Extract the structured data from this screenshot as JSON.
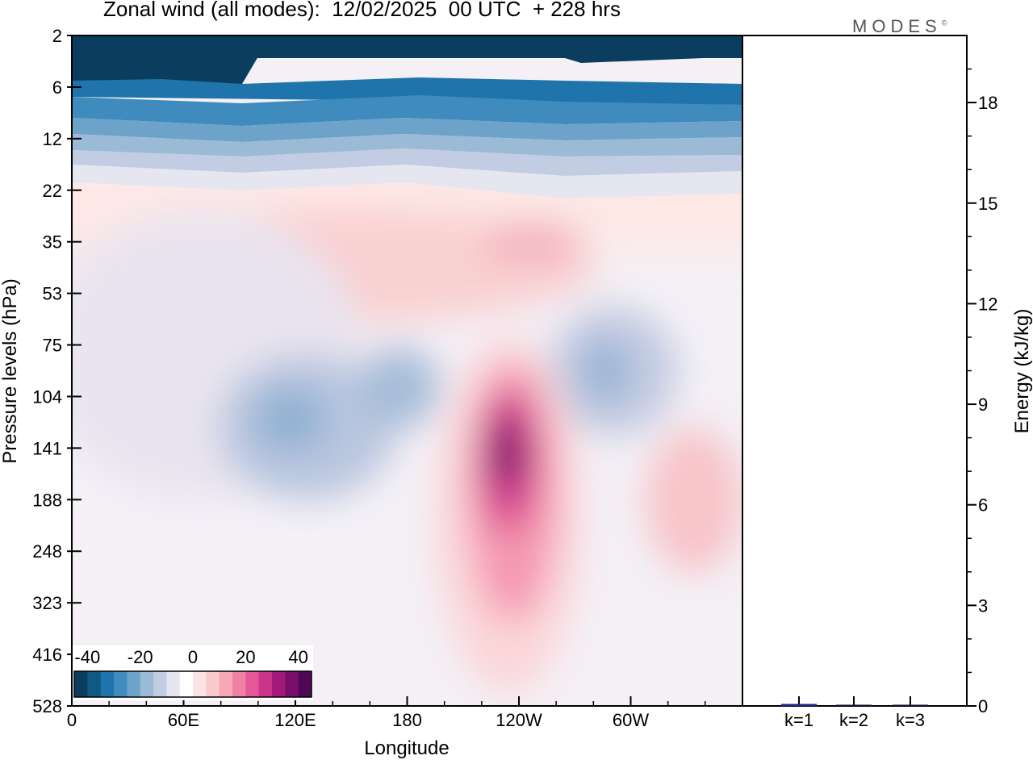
{
  "title": "Zonal wind (all modes):  12/02/2025  00 UTC  + 228 hrs",
  "brand": "MODES",
  "brand_mark": "©",
  "chart_data": [
    {
      "type": "heatmap",
      "title": "Zonal wind (all modes):  12/02/2025  00 UTC  + 228 hrs",
      "xlabel": "Longitude",
      "ylabel": "Pressure levels (hPa)",
      "x_ticks": [
        "0",
        "60E",
        "120E",
        "180",
        "120W",
        "60W"
      ],
      "y_ticks": [
        "2",
        "6",
        "12",
        "22",
        "35",
        "53",
        "75",
        "104",
        "141",
        "188",
        "248",
        "323",
        "416",
        "528"
      ],
      "colorbar": {
        "tick_labels": [
          "-40",
          "-20",
          "0",
          "20",
          "40"
        ],
        "colors": [
          "#0b3d5e",
          "#0f5a85",
          "#1f74ab",
          "#3f8bbd",
          "#6da3c9",
          "#9bbad6",
          "#c2cce2",
          "#e6e6f0",
          "#ffffff",
          "#fde4e4",
          "#f9caca",
          "#f6a8b6",
          "#f181a4",
          "#e45898",
          "#cc3489",
          "#a3197a",
          "#7a0f6b",
          "#4e0855"
        ],
        "range": [
          -45,
          45
        ]
      },
      "features": [
        {
          "name": "stratospheric easterly jet",
          "kind": "negative",
          "lon_span": [
            0,
            360
          ],
          "levels": "2-22 hPa",
          "min_value": -45
        },
        {
          "name": "Pacific westerly jet core",
          "kind": "positive",
          "lon_center": 240,
          "level_center": 141,
          "max_value": 45
        },
        {
          "name": "upper westerlies",
          "kind": "positive",
          "lon_span": [
            10,
            260
          ],
          "levels": "22-75 hPa",
          "max_value": 15
        },
        {
          "name": "east Atlantic westerlies",
          "kind": "positive",
          "lon_center": 340,
          "level_center": 188,
          "max_value": 15
        },
        {
          "name": "tropical easterlies",
          "kind": "negative",
          "lon_center": 140,
          "level_center": 104,
          "min_value": -20
        },
        {
          "name": "American easterlies",
          "kind": "negative",
          "lon_center": 290,
          "level_center": 104,
          "min_value": -20
        }
      ]
    },
    {
      "type": "bar",
      "ylabel": "Energy (kJ/kg)",
      "ylim": [
        0,
        20
      ],
      "y_ticks": [
        "0",
        "3",
        "6",
        "9",
        "12",
        "15",
        "18"
      ],
      "categories": [
        "k=1",
        "k=2",
        "k=3"
      ],
      "values": [
        0.06,
        0.03,
        0.02
      ]
    }
  ]
}
